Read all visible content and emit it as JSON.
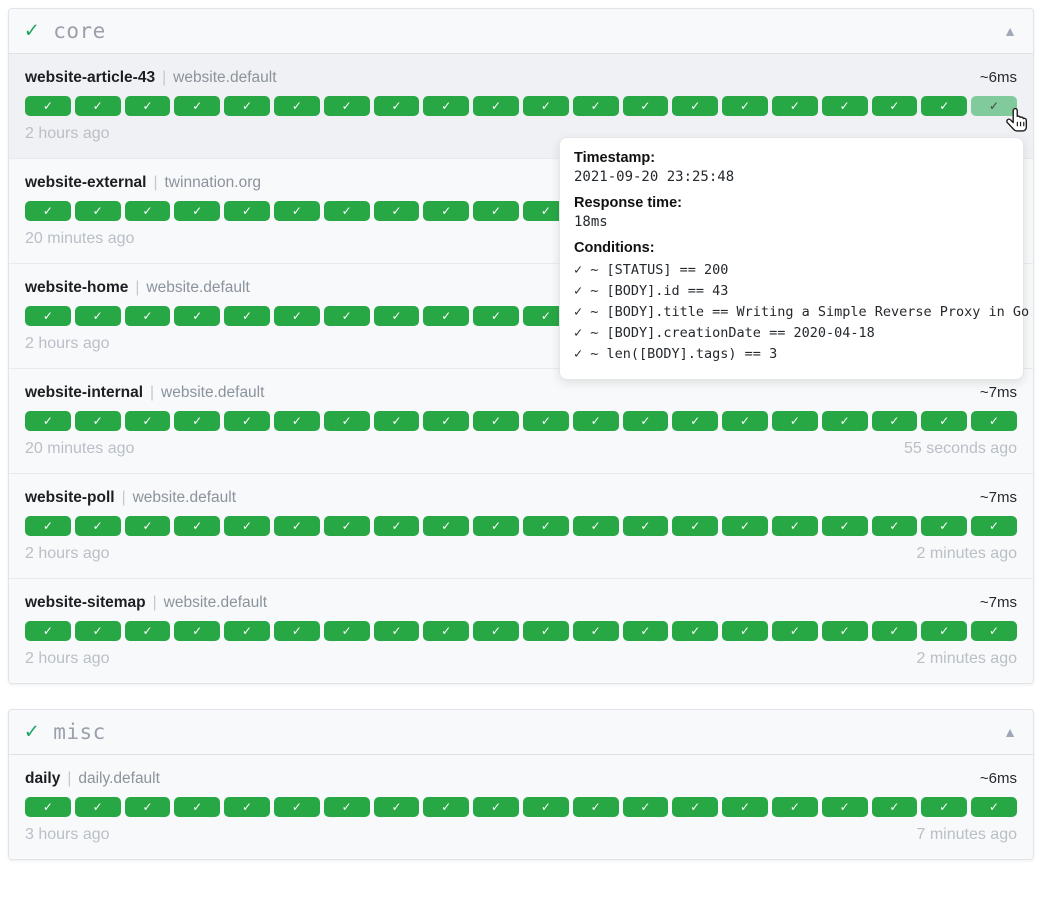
{
  "icons": {
    "group_status": "✓",
    "collapse": "▲",
    "badge_up": "✓"
  },
  "separator": "|",
  "colors": {
    "badge_up": "#28a745",
    "badge_up_hover": "#80ca9b",
    "group_check": "#1fa463",
    "arrow": "#a0a8b7"
  },
  "groups": [
    {
      "name": "core",
      "endpoints": [
        {
          "name": "website-article-43",
          "group": "website.default",
          "response_time": "~6ms",
          "last_check_left": "2 hours ago",
          "last_check_right": "",
          "history": {
            "count": 20,
            "status": "up",
            "hovered_last": true
          }
        },
        {
          "name": "website-external",
          "group": "twinnation.org",
          "response_time": "",
          "last_check_left": "20 minutes ago",
          "last_check_right": "",
          "history": {
            "count": 20,
            "status": "up",
            "hovered_last": false
          }
        },
        {
          "name": "website-home",
          "group": "website.default",
          "response_time": "",
          "last_check_left": "2 hours ago",
          "last_check_right": "",
          "history": {
            "count": 20,
            "status": "up",
            "hovered_last": false
          }
        },
        {
          "name": "website-internal",
          "group": "website.default",
          "response_time": "~7ms",
          "last_check_left": "20 minutes ago",
          "last_check_right": "55 seconds ago",
          "history": {
            "count": 20,
            "status": "up",
            "hovered_last": false
          }
        },
        {
          "name": "website-poll",
          "group": "website.default",
          "response_time": "~7ms",
          "last_check_left": "2 hours ago",
          "last_check_right": "2 minutes ago",
          "history": {
            "count": 20,
            "status": "up",
            "hovered_last": false
          }
        },
        {
          "name": "website-sitemap",
          "group": "website.default",
          "response_time": "~7ms",
          "last_check_left": "2 hours ago",
          "last_check_right": "2 minutes ago",
          "history": {
            "count": 20,
            "status": "up",
            "hovered_last": false
          }
        }
      ]
    },
    {
      "name": "misc",
      "endpoints": [
        {
          "name": "daily",
          "group": "daily.default",
          "response_time": "~6ms",
          "last_check_left": "3 hours ago",
          "last_check_right": "7 minutes ago",
          "history": {
            "count": 20,
            "status": "up",
            "hovered_last": false
          }
        }
      ]
    }
  ],
  "tooltip": {
    "timestamp_label": "Timestamp:",
    "timestamp": "2021-09-20 23:25:48",
    "response_time_label": "Response time:",
    "response_time": "18ms",
    "conditions_label": "Conditions:",
    "conditions": [
      "✓ ~ [STATUS] == 200",
      "✓ ~ [BODY].id == 43",
      "✓ ~ [BODY].title == Writing a Simple Reverse Proxy in Go",
      "✓ ~ [BODY].creationDate == 2020-04-18",
      "✓ ~ len([BODY].tags) == 3"
    ]
  }
}
